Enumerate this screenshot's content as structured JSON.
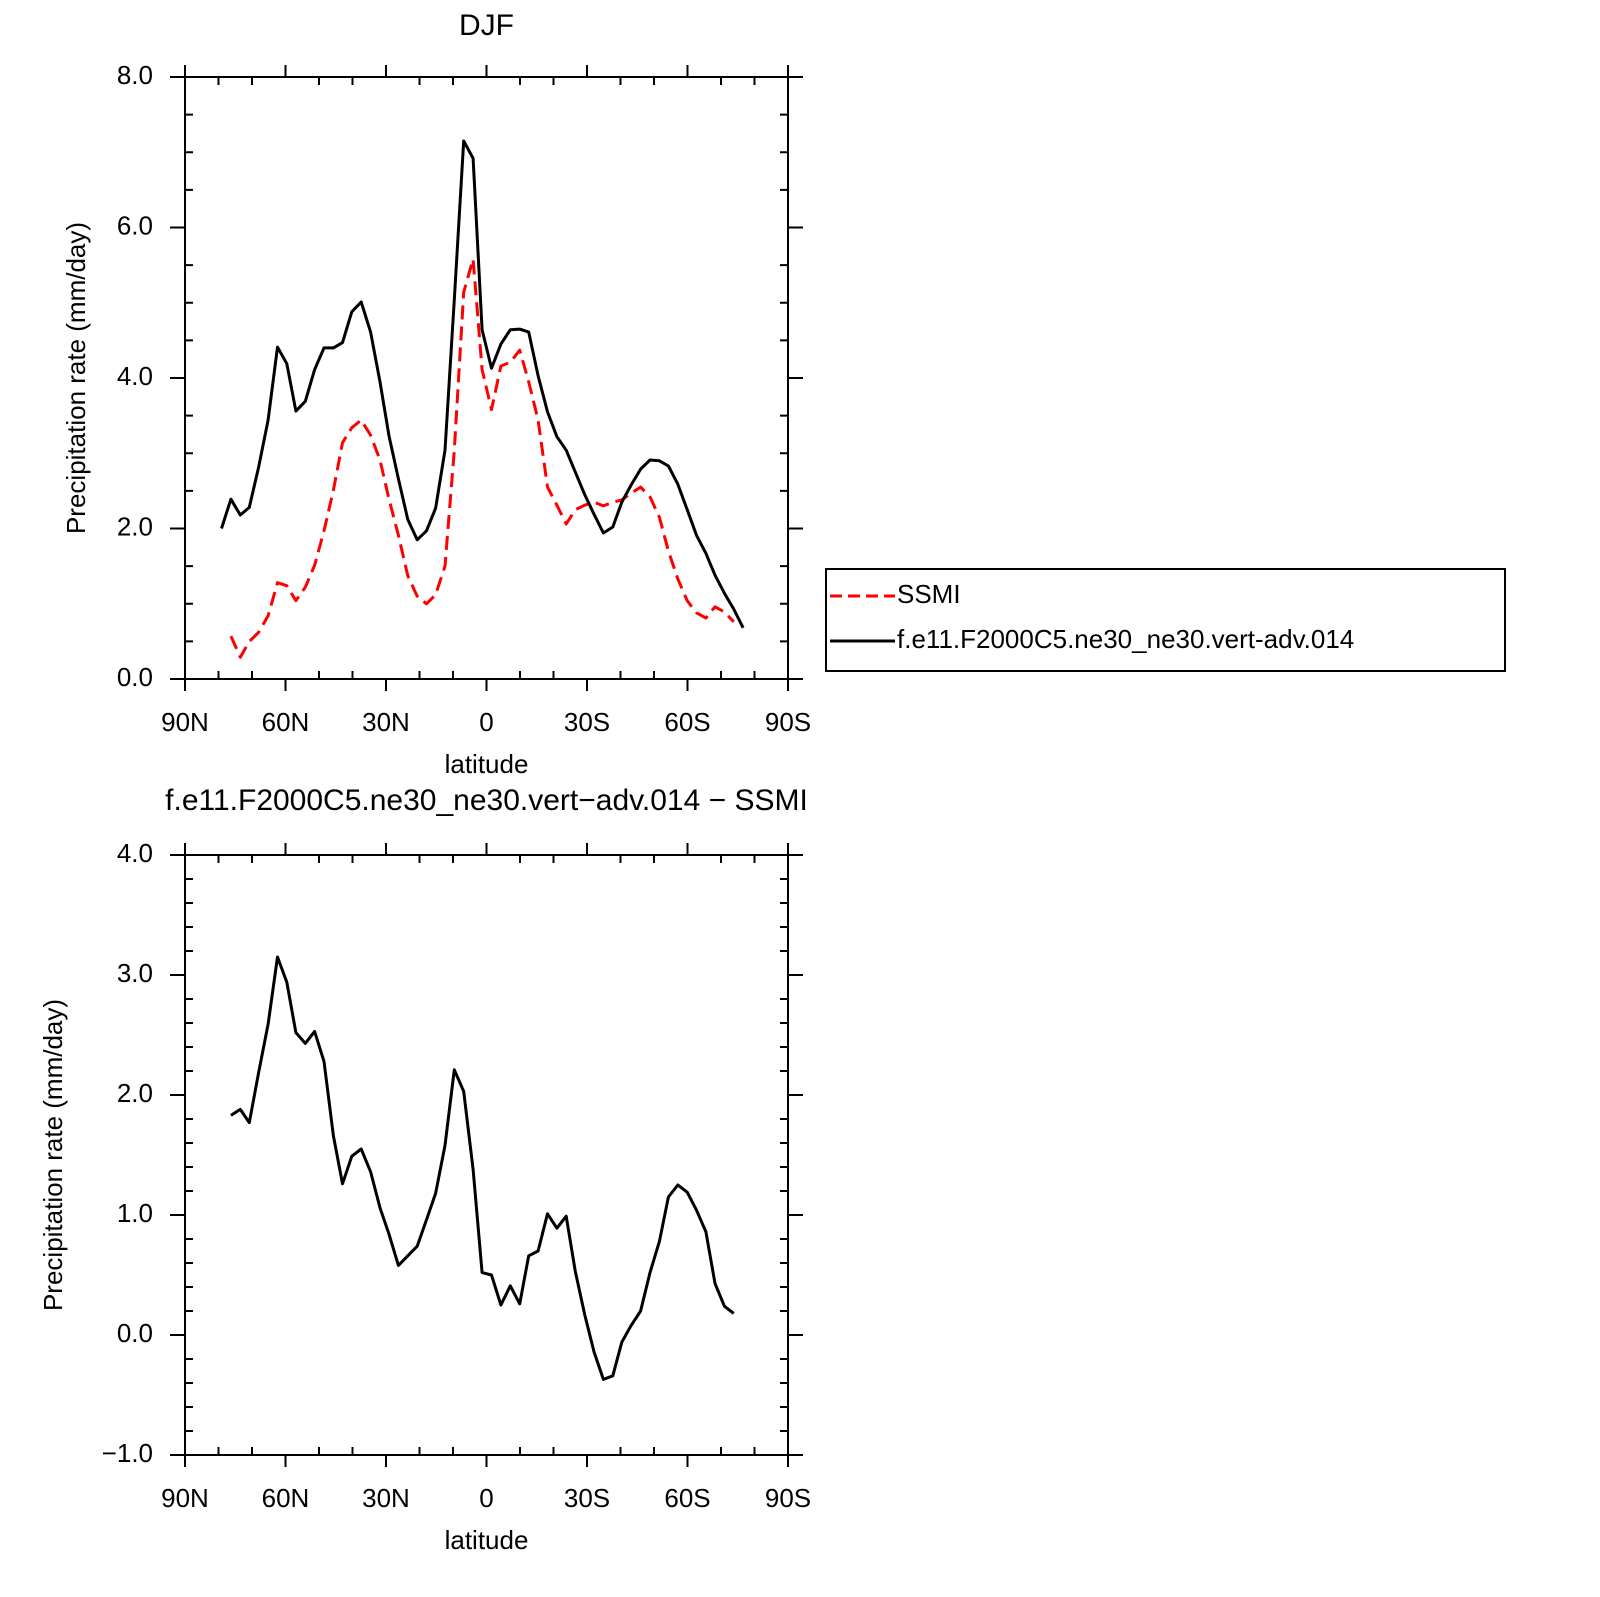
{
  "chart_data": [
    {
      "type": "line",
      "title": "DJF",
      "xlabel": "latitude",
      "ylabel": "Precipitation rate (mm/day)",
      "x": [
        79.1,
        76.3,
        73.5,
        70.8,
        68.0,
        65.2,
        62.4,
        59.6,
        56.9,
        54.1,
        51.3,
        48.5,
        45.7,
        43.0,
        40.2,
        37.4,
        34.6,
        31.8,
        29.1,
        26.3,
        23.5,
        20.7,
        17.9,
        15.2,
        12.4,
        9.6,
        6.8,
        4.0,
        1.3,
        -1.5,
        -4.3,
        -7.1,
        -9.9,
        -12.6,
        -15.4,
        -18.2,
        -21.0,
        -23.8,
        -26.5,
        -29.3,
        -32.1,
        -34.9,
        -37.7,
        -40.4,
        -43.2,
        -46.0,
        -48.8,
        -51.6,
        -54.3,
        -57.1,
        -59.9,
        -62.7,
        -65.5,
        -68.2,
        -71.0,
        -73.8,
        -76.6
      ],
      "series": [
        {
          "name": "SSMI",
          "color": "#ff0000",
          "linestyle": "dashed",
          "values": [
            null,
            0.57,
            0.29,
            0.5,
            0.62,
            0.84,
            1.28,
            1.24,
            1.04,
            1.22,
            1.51,
            1.97,
            2.51,
            3.14,
            3.34,
            3.44,
            3.24,
            2.91,
            2.39,
            1.91,
            1.37,
            1.1,
            1.0,
            1.12,
            1.5,
            3.04,
            5.14,
            5.58,
            4.11,
            3.58,
            4.16,
            4.21,
            4.37,
            3.95,
            3.44,
            2.55,
            2.31,
            2.06,
            2.25,
            2.31,
            2.35,
            2.3,
            2.35,
            2.38,
            2.47,
            2.55,
            2.42,
            2.15,
            1.7,
            1.33,
            1.04,
            0.88,
            0.81,
            0.96,
            0.89,
            0.76,
            null
          ]
        },
        {
          "name": "f.e11.F2000C5.ne30_ne30.vert-adv.014",
          "color": "#000000",
          "linestyle": "solid",
          "values": [
            2.0,
            2.39,
            2.18,
            2.28,
            2.82,
            3.44,
            4.41,
            4.19,
            3.56,
            3.69,
            4.11,
            4.4,
            4.4,
            4.47,
            4.88,
            5.01,
            4.61,
            3.95,
            3.23,
            2.66,
            2.12,
            1.85,
            1.97,
            2.27,
            3.04,
            5.04,
            7.15,
            6.92,
            4.64,
            4.13,
            4.45,
            4.64,
            4.65,
            4.61,
            4.03,
            3.55,
            3.22,
            3.04,
            2.75,
            2.45,
            2.19,
            1.94,
            2.02,
            2.35,
            2.58,
            2.79,
            2.91,
            2.9,
            2.83,
            2.59,
            2.25,
            1.91,
            1.67,
            1.38,
            1.14,
            0.93,
            0.68
          ]
        }
      ],
      "xlim": [
        90,
        -90
      ],
      "xticks": [
        {
          "value": 90,
          "label": "90N"
        },
        {
          "value": 60,
          "label": "60N"
        },
        {
          "value": 30,
          "label": "30N"
        },
        0,
        {
          "value": -30,
          "label": "30S"
        },
        {
          "value": -60,
          "label": "60S"
        },
        {
          "value": -90,
          "label": "90S"
        }
      ],
      "xminorticks": [
        80,
        70,
        50,
        40,
        20,
        10,
        -10,
        -20,
        -40,
        -50,
        -70,
        -80
      ],
      "ylim": [
        0,
        8
      ],
      "yticks": [
        {
          "value": 0,
          "label": "0.0"
        },
        {
          "value": 2,
          "label": "2.0"
        },
        {
          "value": 4,
          "label": "4.0"
        },
        {
          "value": 6,
          "label": "6.0"
        },
        {
          "value": 8,
          "label": "8.0"
        }
      ],
      "yminorticks": [
        0.5,
        1.0,
        1.5,
        2.5,
        3.0,
        3.5,
        4.5,
        5.0,
        5.5,
        6.5,
        7.0,
        7.5
      ],
      "legend": "right"
    },
    {
      "type": "line",
      "title": "f.e11.F2000C5.ne30_ne30.vert−adv.014 − SSMI",
      "xlabel": "latitude",
      "ylabel": "Precipitation rate (mm/day)",
      "x": [
        79.1,
        76.3,
        73.5,
        70.8,
        68.0,
        65.2,
        62.4,
        59.6,
        56.9,
        54.1,
        51.3,
        48.5,
        45.7,
        43.0,
        40.2,
        37.4,
        34.6,
        31.8,
        29.1,
        26.3,
        23.5,
        20.7,
        17.9,
        15.2,
        12.4,
        9.6,
        6.8,
        4.0,
        1.3,
        -1.5,
        -4.3,
        -7.1,
        -9.9,
        -12.6,
        -15.4,
        -18.2,
        -21.0,
        -23.8,
        -26.5,
        -29.3,
        -32.1,
        -34.9,
        -37.7,
        -40.4,
        -43.2,
        -46.0,
        -48.8,
        -51.6,
        -54.3,
        -57.1,
        -59.9,
        -62.7,
        -65.5,
        -68.2,
        -71.0,
        -73.8,
        -76.6
      ],
      "series": [
        {
          "color": "#000000",
          "linestyle": "solid",
          "values": [
            null,
            1.83,
            1.88,
            1.77,
            2.19,
            2.59,
            3.15,
            2.94,
            2.52,
            2.43,
            2.53,
            2.28,
            1.66,
            1.26,
            1.49,
            1.55,
            1.36,
            1.06,
            0.84,
            0.58,
            0.66,
            0.74,
            0.96,
            1.18,
            1.58,
            2.21,
            2.03,
            1.38,
            0.52,
            0.5,
            0.25,
            0.41,
            0.26,
            0.66,
            0.7,
            1.01,
            0.89,
            0.99,
            0.53,
            0.17,
            -0.14,
            -0.37,
            -0.34,
            -0.06,
            0.08,
            0.2,
            0.52,
            0.78,
            1.15,
            1.25,
            1.19,
            1.04,
            0.86,
            0.43,
            0.24,
            0.18,
            null
          ]
        }
      ],
      "xlim": [
        90,
        -90
      ],
      "xticks": [
        {
          "value": 90,
          "label": "90N"
        },
        {
          "value": 60,
          "label": "60N"
        },
        {
          "value": 30,
          "label": "30N"
        },
        0,
        {
          "value": -30,
          "label": "30S"
        },
        {
          "value": -60,
          "label": "60S"
        },
        {
          "value": -90,
          "label": "90S"
        }
      ],
      "xminorticks": [
        80,
        70,
        50,
        40,
        20,
        10,
        -10,
        -20,
        -40,
        -50,
        -70,
        -80
      ],
      "ylim": [
        -1,
        4
      ],
      "yticks": [
        {
          "value": -1,
          "label": "−1.0"
        },
        {
          "value": 0,
          "label": "0.0"
        },
        {
          "value": 1,
          "label": "1.0"
        },
        {
          "value": 2,
          "label": "2.0"
        },
        {
          "value": 3,
          "label": "3.0"
        },
        {
          "value": 4,
          "label": "4.0"
        }
      ],
      "yminorticks": [
        -0.8,
        -0.6,
        -0.4,
        -0.2,
        0.2,
        0.4,
        0.6,
        0.8,
        1.2,
        1.4,
        1.6,
        1.8,
        2.2,
        2.4,
        2.6,
        2.8,
        3.2,
        3.4,
        3.6,
        3.8
      ]
    }
  ]
}
